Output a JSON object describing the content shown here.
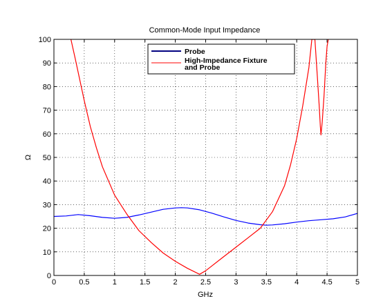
{
  "chart_data": {
    "type": "line",
    "title": "Common-Mode Input Impedance",
    "xlabel": "GHz",
    "ylabel": "Ω",
    "xlim": [
      0,
      5
    ],
    "ylim": [
      0,
      100
    ],
    "xticks": [
      0,
      0.5,
      1,
      1.5,
      2,
      2.5,
      3,
      3.5,
      4,
      4.5,
      5
    ],
    "xtick_labels": [
      "0",
      "0.5",
      "1",
      "1.5",
      "2",
      "2.5",
      "3",
      "3.5",
      "4",
      "4.5",
      "5"
    ],
    "yticks": [
      0,
      10,
      20,
      30,
      40,
      50,
      60,
      70,
      80,
      90,
      100
    ],
    "ytick_labels": [
      "0",
      "10",
      "20",
      "30",
      "40",
      "50",
      "60",
      "70",
      "80",
      "90",
      "100"
    ],
    "grid": true,
    "legend_position": "top-center",
    "series": [
      {
        "name": "Probe",
        "color": "#0000ff",
        "legend_color": "#000080",
        "x": [
          0,
          0.2,
          0.4,
          0.6,
          0.8,
          1.0,
          1.2,
          1.4,
          1.6,
          1.8,
          2.0,
          2.1,
          2.2,
          2.4,
          2.6,
          2.8,
          3.0,
          3.2,
          3.4,
          3.5,
          3.6,
          3.8,
          4.0,
          4.2,
          4.4,
          4.6,
          4.8,
          5.0
        ],
        "y": [
          25.0,
          25.2,
          25.8,
          25.3,
          24.6,
          24.2,
          24.6,
          25.6,
          26.8,
          28.0,
          28.6,
          28.7,
          28.6,
          27.8,
          26.4,
          24.8,
          23.3,
          22.2,
          21.5,
          21.3,
          21.4,
          21.9,
          22.6,
          23.2,
          23.6,
          24.0,
          24.8,
          26.3
        ]
      },
      {
        "name": "High-Impedance Fixture and Probe",
        "legend_lines": [
          "High-Impedance Fixture",
          "and Probe"
        ],
        "color": "#ff0000",
        "legend_color": "#ff0000",
        "x": [
          0.28,
          0.35,
          0.4,
          0.5,
          0.6,
          0.7,
          0.8,
          0.9,
          1.0,
          1.1,
          1.2,
          1.4,
          1.6,
          1.8,
          2.0,
          2.2,
          2.4,
          2.5,
          2.6,
          2.8,
          3.0,
          3.2,
          3.4,
          3.6,
          3.8,
          3.9,
          4.0,
          4.1,
          4.2,
          4.25,
          4.3,
          4.34,
          4.37,
          4.39,
          4.4,
          4.42,
          4.45,
          4.48,
          4.5,
          4.52
        ],
        "y": [
          100,
          92,
          86,
          74,
          63,
          54,
          46,
          40,
          34,
          30,
          26,
          19,
          14,
          9.5,
          6,
          3,
          0.5,
          2,
          4,
          8,
          12,
          16,
          20,
          27,
          38,
          47,
          58,
          72,
          88,
          100,
          100,
          84,
          72,
          63,
          59.5,
          65,
          76,
          90,
          97,
          100
        ]
      }
    ]
  }
}
